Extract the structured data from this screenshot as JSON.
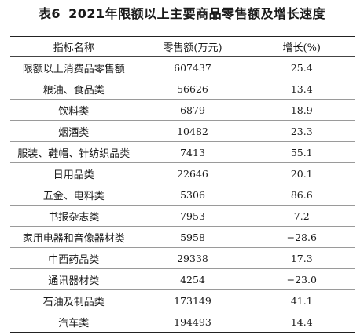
{
  "title": {
    "number": "表6",
    "text": "2021年限额以上主要商品零售额及增长速度"
  },
  "table": {
    "headers": [
      "指标名称",
      "零售额(万元)",
      "增长(%)"
    ],
    "rows": [
      {
        "name": "限额以上消费品零售额",
        "sales": "607437",
        "growth": "25.4"
      },
      {
        "name": "粮油、食品类",
        "sales": "56626",
        "growth": "13.4"
      },
      {
        "name": "饮料类",
        "sales": "6879",
        "growth": "18.9"
      },
      {
        "name": "烟酒类",
        "sales": "10482",
        "growth": "23.3"
      },
      {
        "name": "服装、鞋帽、针纺织品类",
        "sales": "7413",
        "growth": "55.1"
      },
      {
        "name": "日用品类",
        "sales": "22646",
        "growth": "20.1"
      },
      {
        "name": "五金、电料类",
        "sales": "5306",
        "growth": "86.6"
      },
      {
        "name": "书报杂志类",
        "sales": "7953",
        "growth": "7.2"
      },
      {
        "name": "家用电器和音像器材类",
        "sales": "5958",
        "growth": "−28.6"
      },
      {
        "name": "中西药品类",
        "sales": "29338",
        "growth": "17.3"
      },
      {
        "name": "通讯器材类",
        "sales": "4254",
        "growth": "−23.0"
      },
      {
        "name": "石油及制品类",
        "sales": "173149",
        "growth": "41.1"
      },
      {
        "name": "汽车类",
        "sales": "194493",
        "growth": "14.4"
      }
    ]
  }
}
